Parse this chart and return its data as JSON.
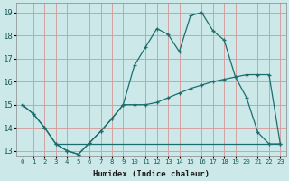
{
  "xlabel": "Humidex (Indice chaleur)",
  "bg_color": "#cce8e8",
  "grid_color": "#d4a0a0",
  "line_color": "#1a6e6e",
  "xlim": [
    -0.5,
    23.5
  ],
  "ylim": [
    12.8,
    19.4
  ],
  "xticks": [
    0,
    1,
    2,
    3,
    4,
    5,
    6,
    7,
    8,
    9,
    10,
    11,
    12,
    13,
    14,
    15,
    16,
    17,
    18,
    19,
    20,
    21,
    22,
    23
  ],
  "yticks": [
    13,
    14,
    15,
    16,
    17,
    18,
    19
  ],
  "line1_x": [
    0,
    1,
    2,
    3,
    4,
    5,
    6,
    7,
    8,
    9,
    10,
    11,
    12,
    13,
    14,
    15,
    16,
    17,
    18,
    19,
    20,
    21,
    22,
    23
  ],
  "line1_y": [
    15.0,
    14.6,
    14.0,
    13.3,
    13.0,
    12.85,
    13.35,
    13.85,
    14.4,
    15.0,
    15.0,
    15.0,
    15.1,
    15.3,
    15.5,
    15.7,
    15.85,
    16.0,
    16.1,
    16.2,
    16.3,
    16.3,
    16.3,
    13.3
  ],
  "line2_x": [
    0,
    1,
    2,
    3,
    4,
    5,
    6,
    7,
    8,
    9,
    10,
    11,
    12,
    13,
    14,
    15,
    16,
    17,
    18,
    19,
    20,
    21,
    22,
    23
  ],
  "line2_y": [
    15.0,
    14.6,
    14.0,
    13.3,
    13.0,
    12.85,
    13.35,
    13.85,
    14.4,
    15.0,
    16.7,
    17.5,
    18.3,
    18.05,
    17.3,
    18.85,
    19.0,
    18.2,
    17.8,
    16.2,
    15.3,
    13.8,
    13.3,
    13.3
  ],
  "line3_x": [
    3,
    4,
    5,
    6,
    7,
    8,
    9,
    10,
    11,
    12,
    13,
    14,
    15,
    16,
    17,
    18,
    19,
    20,
    21,
    22,
    23
  ],
  "line3_y": [
    13.3,
    13.3,
    13.3,
    13.3,
    13.3,
    13.3,
    13.3,
    13.3,
    13.3,
    13.3,
    13.3,
    13.3,
    13.3,
    13.3,
    13.3,
    13.3,
    13.3,
    13.3,
    13.3,
    13.3,
    13.3
  ]
}
